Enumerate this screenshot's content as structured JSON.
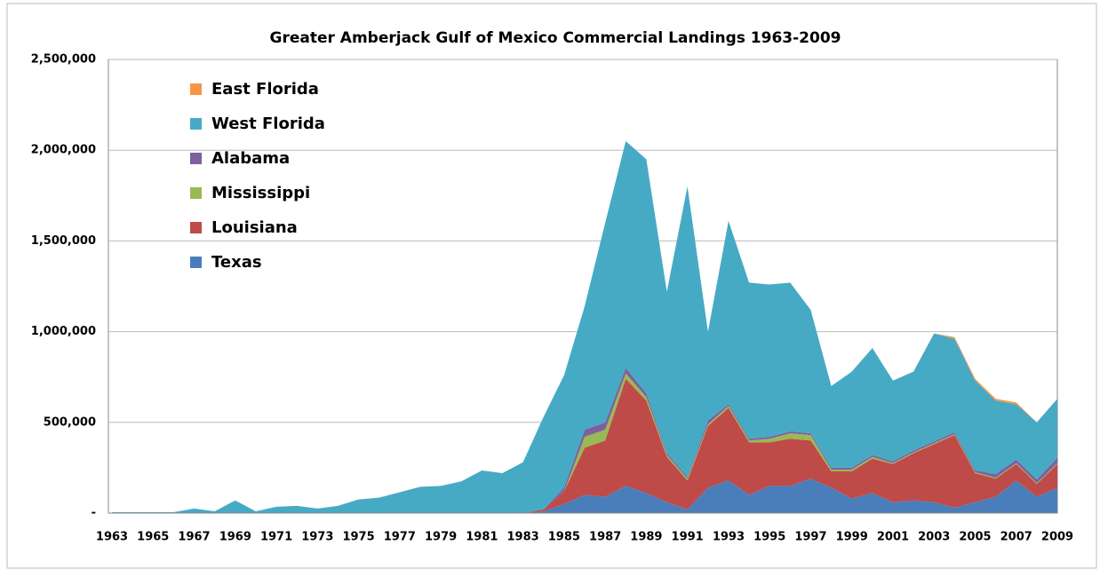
{
  "chart_data": {
    "type": "stacked_area",
    "title": "Greater Amberjack Gulf of Mexico Commercial Landings 1963-2009",
    "categories": [
      "1963",
      null,
      "1965",
      null,
      "1967",
      null,
      "1969",
      null,
      "1971",
      null,
      "1973",
      null,
      "1975",
      null,
      "1977",
      null,
      "1979",
      null,
      "1981",
      null,
      "1983",
      null,
      "1985",
      null,
      "1987",
      null,
      "1989",
      null,
      "1991",
      null,
      "1993",
      null,
      "1995",
      null,
      "1997",
      null,
      "1999",
      null,
      "2001",
      null,
      "2003",
      null,
      "2005",
      null,
      "2007",
      null,
      "2009"
    ],
    "series": [
      {
        "name": "Texas",
        "color": "#4a7ebb",
        "values": [
          0,
          0,
          0,
          0,
          0,
          0,
          0,
          0,
          0,
          0,
          0,
          0,
          0,
          0,
          0,
          0,
          0,
          0,
          0,
          0,
          0,
          10000,
          50000,
          100000,
          90000,
          150000,
          110000,
          60000,
          20000,
          140000,
          180000,
          100000,
          150000,
          150000,
          190000,
          140000,
          80000,
          110000,
          60000,
          70000,
          60000,
          30000,
          60000,
          90000,
          180000,
          90000,
          140000
        ]
      },
      {
        "name": "Louisiana",
        "color": "#be4b48",
        "values": [
          0,
          0,
          0,
          0,
          0,
          0,
          0,
          0,
          0,
          0,
          0,
          0,
          0,
          0,
          0,
          0,
          0,
          0,
          0,
          0,
          0,
          10000,
          70000,
          260000,
          310000,
          590000,
          510000,
          250000,
          160000,
          340000,
          400000,
          290000,
          240000,
          260000,
          210000,
          90000,
          150000,
          190000,
          210000,
          260000,
          320000,
          400000,
          160000,
          100000,
          90000,
          70000,
          130000
        ]
      },
      {
        "name": "Mississippi",
        "color": "#98b954",
        "values": [
          0,
          0,
          0,
          0,
          0,
          0,
          0,
          0,
          0,
          0,
          0,
          0,
          0,
          0,
          0,
          0,
          0,
          0,
          0,
          0,
          0,
          0,
          0,
          60000,
          60000,
          30000,
          20000,
          10000,
          10000,
          10000,
          10000,
          10000,
          20000,
          30000,
          30000,
          10000,
          10000,
          10000,
          5000,
          5000,
          5000,
          5000,
          5000,
          5000,
          5000,
          5000,
          5000
        ]
      },
      {
        "name": "Alabama",
        "color": "#7d60a0",
        "values": [
          0,
          0,
          0,
          0,
          0,
          0,
          0,
          0,
          0,
          0,
          0,
          0,
          0,
          0,
          0,
          0,
          0,
          0,
          0,
          0,
          0,
          0,
          20000,
          40000,
          40000,
          30000,
          20000,
          10000,
          10000,
          20000,
          10000,
          10000,
          10000,
          10000,
          10000,
          10000,
          10000,
          10000,
          10000,
          10000,
          10000,
          10000,
          10000,
          20000,
          20000,
          20000,
          30000
        ]
      },
      {
        "name": "West Florida",
        "color": "#46aac5",
        "values": [
          5000,
          5000,
          5000,
          5000,
          25000,
          10000,
          70000,
          10000,
          35000,
          40000,
          25000,
          40000,
          75000,
          85000,
          115000,
          145000,
          150000,
          175000,
          235000,
          220000,
          280000,
          510000,
          620000,
          680000,
          1100000,
          1250000,
          1290000,
          890000,
          1600000,
          490000,
          1010000,
          860000,
          840000,
          820000,
          680000,
          450000,
          530000,
          590000,
          445000,
          435000,
          595000,
          515000,
          495000,
          405000,
          305000,
          315000,
          325000
        ]
      },
      {
        "name": "East Florida",
        "color": "#f79646",
        "values": [
          0,
          0,
          0,
          0,
          0,
          0,
          0,
          0,
          0,
          0,
          0,
          0,
          0,
          0,
          0,
          0,
          0,
          0,
          0,
          0,
          0,
          0,
          0,
          0,
          0,
          0,
          0,
          0,
          0,
          0,
          0,
          0,
          0,
          0,
          0,
          0,
          0,
          0,
          0,
          0,
          0,
          10000,
          10000,
          10000,
          10000,
          0,
          0
        ]
      }
    ],
    "ylim": [
      0,
      2500000
    ],
    "yticks": [
      {
        "value": 0,
        "label": "-"
      },
      {
        "value": 500000,
        "label": "500,000"
      },
      {
        "value": 1000000,
        "label": "1,000,000"
      },
      {
        "value": 1500000,
        "label": "1,500,000"
      },
      {
        "value": 2000000,
        "label": "2,000,000"
      },
      {
        "value": 2500000,
        "label": "2,500,000"
      }
    ],
    "grid": true,
    "legend": "upper left"
  }
}
